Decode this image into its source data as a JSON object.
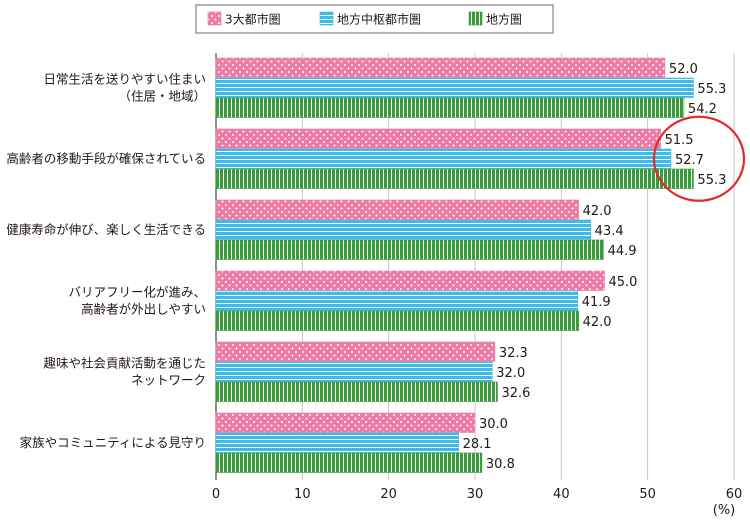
{
  "chart_data": {
    "type": "bar",
    "orientation": "horizontal",
    "categories": [
      [
        "日常生活を送りやすい住まい",
        "（住居・地域）"
      ],
      [
        "高齢者の移動手段が確保されている"
      ],
      [
        "健康寿命が伸び、楽しく生活できる"
      ],
      [
        "バリアフリー化が進み、",
        "高齢者が外出しやすい"
      ],
      [
        "趣味や社会貢献活動を通じた",
        "ネットワーク"
      ],
      [
        "家族やコミュニティによる見守り"
      ]
    ],
    "series": [
      {
        "name": "3大都市圏",
        "values": [
          52.0,
          51.5,
          42.0,
          45.0,
          32.3,
          30.0
        ],
        "labels": [
          "52.0",
          "51.5",
          "42.0",
          "45.0",
          "32.3",
          "30.0"
        ]
      },
      {
        "name": "地方中枢都市圏",
        "values": [
          55.3,
          52.7,
          43.4,
          41.9,
          32.0,
          28.1
        ],
        "labels": [
          "55.3",
          "52.7",
          "43.4",
          "41.9",
          "32.0",
          "28.1"
        ]
      },
      {
        "name": "地方圏",
        "values": [
          54.2,
          55.3,
          44.9,
          42.0,
          32.6,
          30.8
        ],
        "labels": [
          "54.2",
          "55.3",
          "44.9",
          "42.0",
          "32.6",
          "30.8"
        ]
      }
    ],
    "xlim": [
      0,
      60
    ],
    "xticks": [
      "0",
      "10",
      "20",
      "30",
      "40",
      "50",
      "60"
    ],
    "unit": "(%)",
    "grid": "vertical",
    "legend_position": "top-center",
    "highlight": {
      "category_index": 1,
      "shape": "red-circle"
    },
    "colors": {
      "series0": "#ee7aa6",
      "series0_dots": "#ffffff",
      "series1": "#3dbbe8",
      "series1_stripes": "#ffffff",
      "series2": "#3a9a3c",
      "series2_stripes": "#ffffff",
      "highlight": "#e6282b"
    }
  }
}
